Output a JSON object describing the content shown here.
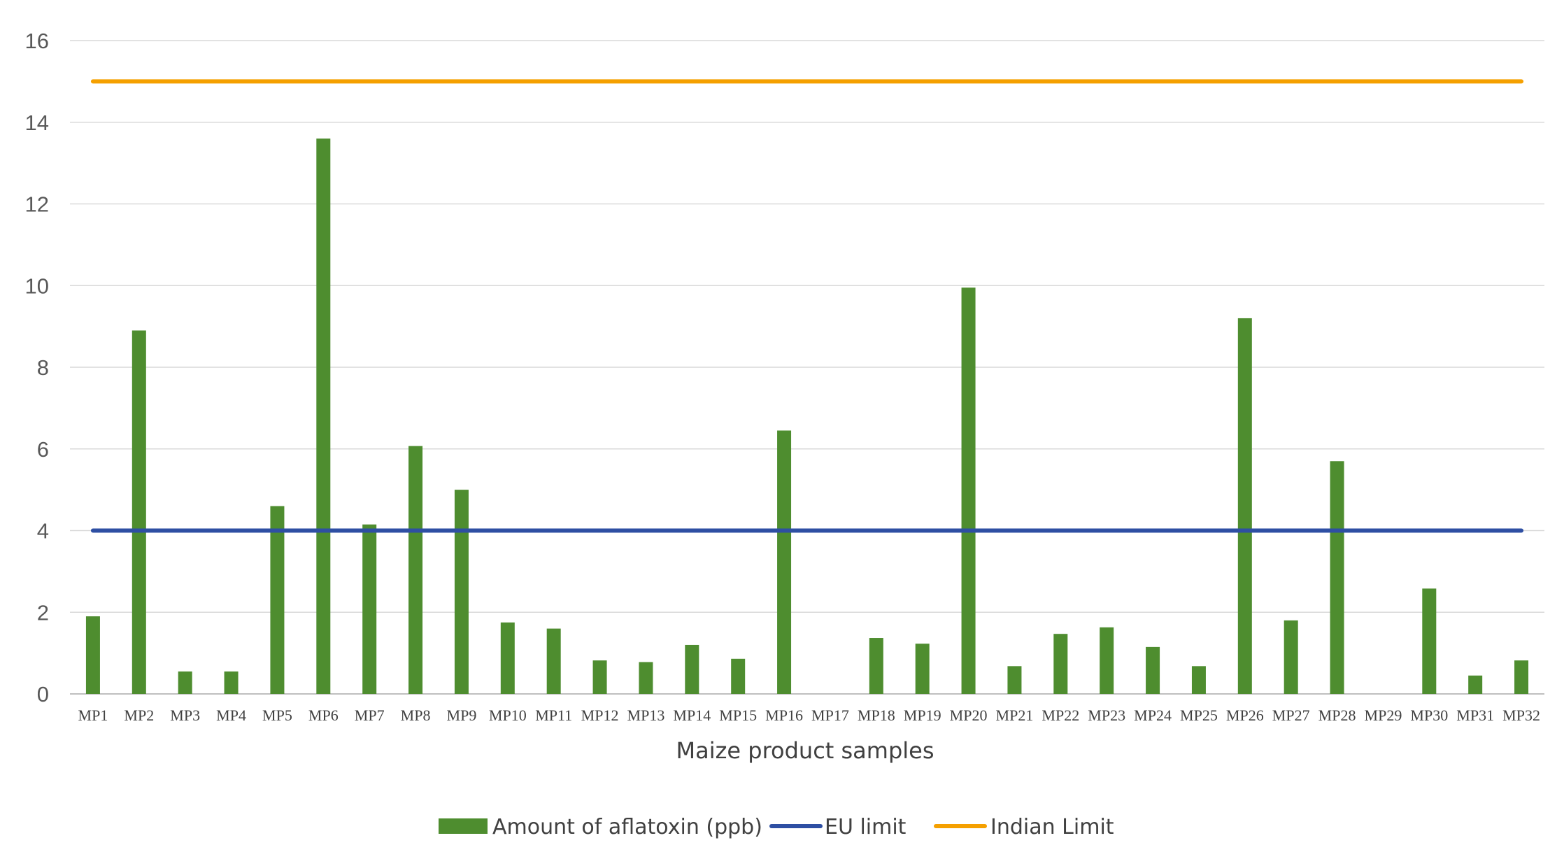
{
  "chart_data": {
    "type": "bar",
    "title": "",
    "xlabel": "Maize product samples",
    "ylabel": "",
    "ylim": [
      0,
      16
    ],
    "yticks": [
      0,
      2,
      4,
      6,
      8,
      10,
      12,
      14,
      16
    ],
    "grid": true,
    "legend_position": "bottom",
    "categories": [
      "MP1",
      "MP2",
      "MP3",
      "MP4",
      "MP5",
      "MP6",
      "MP7",
      "MP8",
      "MP9",
      "MP10",
      "MP11",
      "MP12",
      "MP13",
      "MP14",
      "MP15",
      "MP16",
      "MP17",
      "MP18",
      "MP19",
      "MP20",
      "MP21",
      "MP22",
      "MP23",
      "MP24",
      "MP25",
      "MP26",
      "MP27",
      "MP28",
      "MP29",
      "MP30",
      "MP31",
      "MP32"
    ],
    "series": [
      {
        "name": "Amount of aflatoxin (ppb)",
        "kind": "bar",
        "color": "#4e8d2f",
        "values": [
          1.9,
          8.9,
          0.55,
          0.55,
          4.6,
          13.6,
          4.15,
          6.07,
          5.0,
          1.75,
          1.6,
          0.82,
          0.78,
          1.2,
          0.86,
          6.45,
          0,
          1.37,
          1.23,
          9.95,
          0.68,
          1.47,
          1.63,
          1.15,
          0.68,
          9.2,
          1.8,
          5.7,
          0,
          2.58,
          0.45,
          0.82
        ]
      },
      {
        "name": "EU limit",
        "kind": "line",
        "color": "#2e4fa3",
        "values": [
          4,
          4,
          4,
          4,
          4,
          4,
          4,
          4,
          4,
          4,
          4,
          4,
          4,
          4,
          4,
          4,
          4,
          4,
          4,
          4,
          4,
          4,
          4,
          4,
          4,
          4,
          4,
          4,
          4,
          4,
          4,
          4
        ]
      },
      {
        "name": "Indian Limit",
        "kind": "line",
        "color": "#f5a000",
        "values": [
          15,
          15,
          15,
          15,
          15,
          15,
          15,
          15,
          15,
          15,
          15,
          15,
          15,
          15,
          15,
          15,
          15,
          15,
          15,
          15,
          15,
          15,
          15,
          15,
          15,
          15,
          15,
          15,
          15,
          15,
          15,
          15
        ]
      }
    ]
  }
}
